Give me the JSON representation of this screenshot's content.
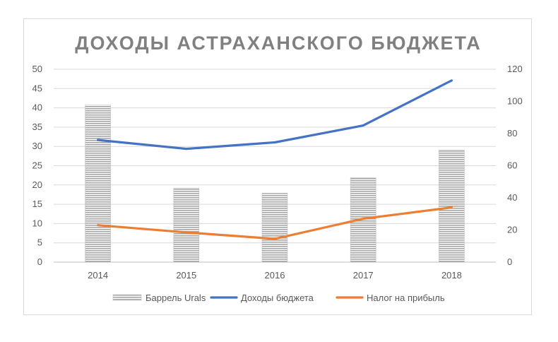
{
  "chart_data": {
    "type": "bar",
    "title": "ДОХОДЫ АСТРАХАНСКОГО БЮДЖЕТА",
    "categories": [
      "2014",
      "2015",
      "2016",
      "2017",
      "2018"
    ],
    "y_left": {
      "range": [
        0,
        50
      ],
      "ticks": [
        "50",
        "45",
        "40",
        "35",
        "30",
        "25",
        "20",
        "15",
        "10",
        "5",
        "0"
      ]
    },
    "y_right": {
      "range": [
        0,
        120
      ],
      "ticks": [
        "120",
        "100",
        "80",
        "60",
        "40",
        "20",
        "0"
      ]
    },
    "series": [
      {
        "name": "Баррель Urals",
        "type": "bar",
        "axis": "left",
        "color": "#a6a6a6",
        "values": [
          40.7,
          19.2,
          17.9,
          21.9,
          29.1
        ]
      },
      {
        "name": "Доходы бюджета",
        "type": "line",
        "axis": "right",
        "color": "#4472c4",
        "values": [
          76,
          70.5,
          74.5,
          85,
          113
        ]
      },
      {
        "name": "Налог на прибыль",
        "type": "line",
        "axis": "right",
        "color": "#ed7d31",
        "values": [
          23,
          18.5,
          14.5,
          27,
          34
        ]
      }
    ],
    "grid": true,
    "legend_position": "bottom"
  }
}
